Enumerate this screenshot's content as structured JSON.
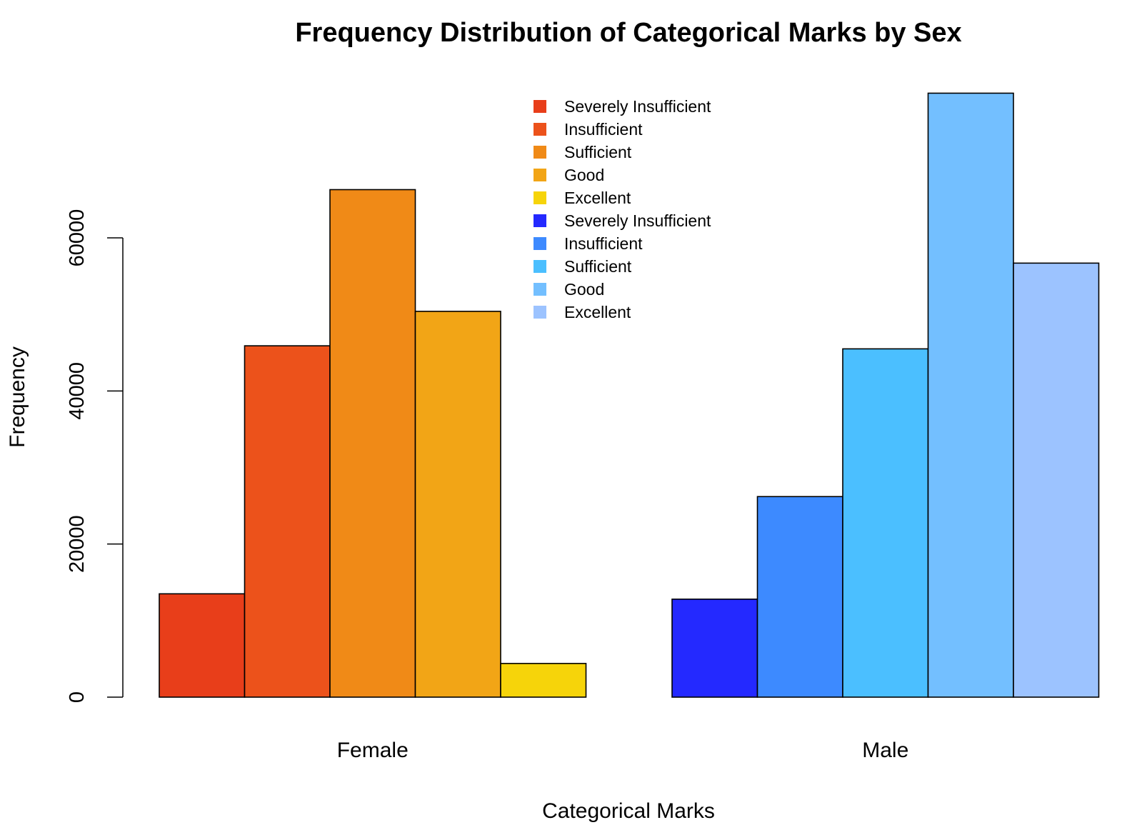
{
  "chart_data": {
    "type": "bar",
    "title": "Frequency Distribution of Categorical Marks by Sex",
    "xlabel": "Categorical Marks",
    "ylabel": "Frequency",
    "ylim": [
      0,
      80000
    ],
    "yticks": [
      0,
      20000,
      40000,
      60000
    ],
    "y_tick_labels": [
      "0",
      "20000",
      "40000",
      "60000"
    ],
    "grid": false,
    "legend_position": "top-center",
    "groups": [
      {
        "name": "Female",
        "categories": [
          "Severely Insufficient",
          "Insufficient",
          "Sufficient",
          "Good",
          "Excellent"
        ],
        "values": [
          13500,
          45900,
          66300,
          50400,
          4400
        ],
        "colors": [
          "#E83E1A",
          "#EC521B",
          "#F08A17",
          "#F2A516",
          "#F6D40A"
        ]
      },
      {
        "name": "Male",
        "categories": [
          "Severely Insufficient",
          "Insufficient",
          "Sufficient",
          "Good",
          "Excellent"
        ],
        "values": [
          12800,
          26200,
          45500,
          78900,
          56700
        ],
        "colors": [
          "#2429FF",
          "#3D8AFF",
          "#4BBFFF",
          "#73BFFF",
          "#9CC3FF"
        ]
      }
    ],
    "legend": [
      {
        "label": "Severely Insufficient",
        "color": "#E83E1A"
      },
      {
        "label": "Insufficient",
        "color": "#EC521B"
      },
      {
        "label": "Sufficient",
        "color": "#F08A17"
      },
      {
        "label": "Good",
        "color": "#F2A516"
      },
      {
        "label": "Excellent",
        "color": "#F6D40A"
      },
      {
        "label": "Severely Insufficient",
        "color": "#2429FF"
      },
      {
        "label": "Insufficient",
        "color": "#3D8AFF"
      },
      {
        "label": "Sufficient",
        "color": "#4BBFFF"
      },
      {
        "label": "Good",
        "color": "#73BFFF"
      },
      {
        "label": "Excellent",
        "color": "#9CC3FF"
      }
    ]
  }
}
